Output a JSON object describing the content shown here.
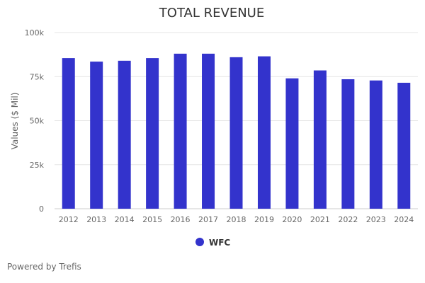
{
  "chart_data": {
    "type": "bar",
    "title": "TOTAL REVENUE",
    "ylabel": "Values ($ Mil)",
    "xlabel": "",
    "categories": [
      "2012",
      "2013",
      "2014",
      "2015",
      "2016",
      "2017",
      "2018",
      "2019",
      "2020",
      "2021",
      "2022",
      "2023",
      "2024"
    ],
    "series": [
      {
        "name": "WFC",
        "color": "#3333cc",
        "values": [
          85500,
          83500,
          84000,
          85500,
          88000,
          88000,
          86000,
          86500,
          74000,
          78500,
          73500,
          72800,
          71500
        ]
      }
    ],
    "ylim": [
      0,
      100000
    ],
    "yticks": [
      0,
      25000,
      50000,
      75000,
      100000
    ],
    "ytick_labels": [
      "0",
      "25k",
      "50k",
      "75k",
      "100k"
    ],
    "grid": true,
    "legend_position": "bottom-center"
  },
  "footer": {
    "credit": "Powered by Trefis"
  }
}
